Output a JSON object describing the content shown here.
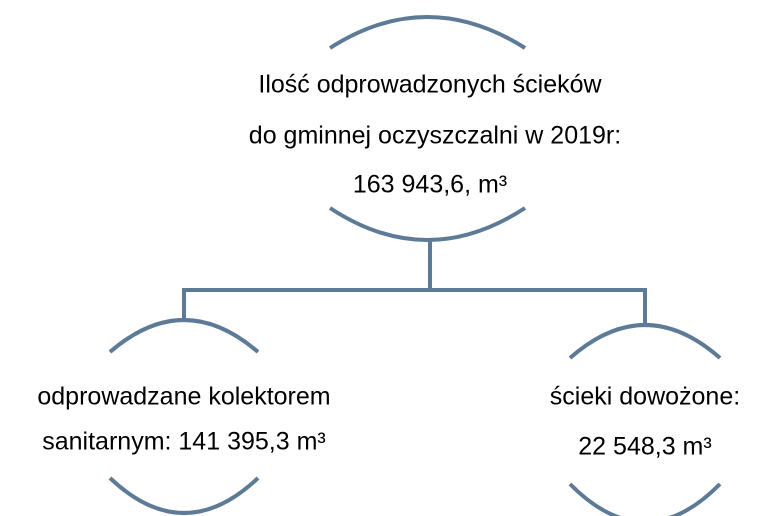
{
  "nodes": [
    {
      "lines": [
        "Ilość odprowadzonych ścieków",
        "do gminnej oczyszczalni w 2019r:",
        "163 943,6, m³"
      ]
    },
    {
      "lines": [
        "odprowadzane kolektorem",
        "sanitarnym: 141 395,3 m³"
      ]
    },
    {
      "lines": [
        "ścieki dowożone:",
        "22 548,3 m³"
      ]
    }
  ]
}
